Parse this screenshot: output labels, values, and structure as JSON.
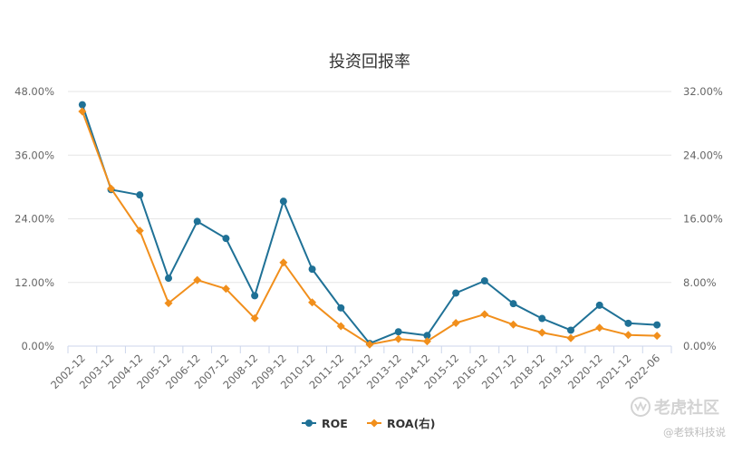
{
  "chart_data": {
    "type": "line",
    "title": "投资回报率",
    "x": [
      "2002-12",
      "2003-12",
      "2004-12",
      "2005-12",
      "2006-12",
      "2007-12",
      "2008-12",
      "2009-12",
      "2010-12",
      "2011-12",
      "2012-12",
      "2013-12",
      "2014-12",
      "2015-12",
      "2016-12",
      "2017-12",
      "2018-12",
      "2019-12",
      "2020-12",
      "2021-12",
      "2022-06"
    ],
    "y_left": {
      "ticks": [
        "0.00%",
        "12.00%",
        "24.00%",
        "36.00%",
        "48.00%"
      ],
      "range": [
        0,
        48
      ]
    },
    "y_right": {
      "ticks": [
        "0.00%",
        "8.00%",
        "16.00%",
        "24.00%",
        "32.00%"
      ],
      "range": [
        0,
        32
      ]
    },
    "series": [
      {
        "name": "ROE",
        "axis": "left",
        "color": "#1f7196",
        "marker": "circle",
        "values": [
          45.5,
          29.5,
          28.5,
          12.8,
          23.5,
          20.3,
          9.5,
          27.3,
          14.5,
          7.2,
          0.5,
          2.7,
          2.0,
          10.0,
          12.3,
          8.0,
          5.2,
          3.0,
          7.7,
          4.3,
          4.0
        ]
      },
      {
        "name": "ROA(右)",
        "axis": "right",
        "color": "#f18f1c",
        "marker": "diamond",
        "values": [
          29.5,
          19.8,
          14.5,
          5.4,
          8.3,
          7.2,
          3.5,
          10.5,
          5.5,
          2.5,
          0.2,
          0.9,
          0.6,
          2.9,
          4.0,
          2.7,
          1.7,
          1.0,
          2.3,
          1.4,
          1.3
        ]
      }
    ],
    "grid": true,
    "legend": "bottom-center"
  },
  "watermark": {
    "brand": "老虎社区",
    "author": "@老铁科技说"
  }
}
